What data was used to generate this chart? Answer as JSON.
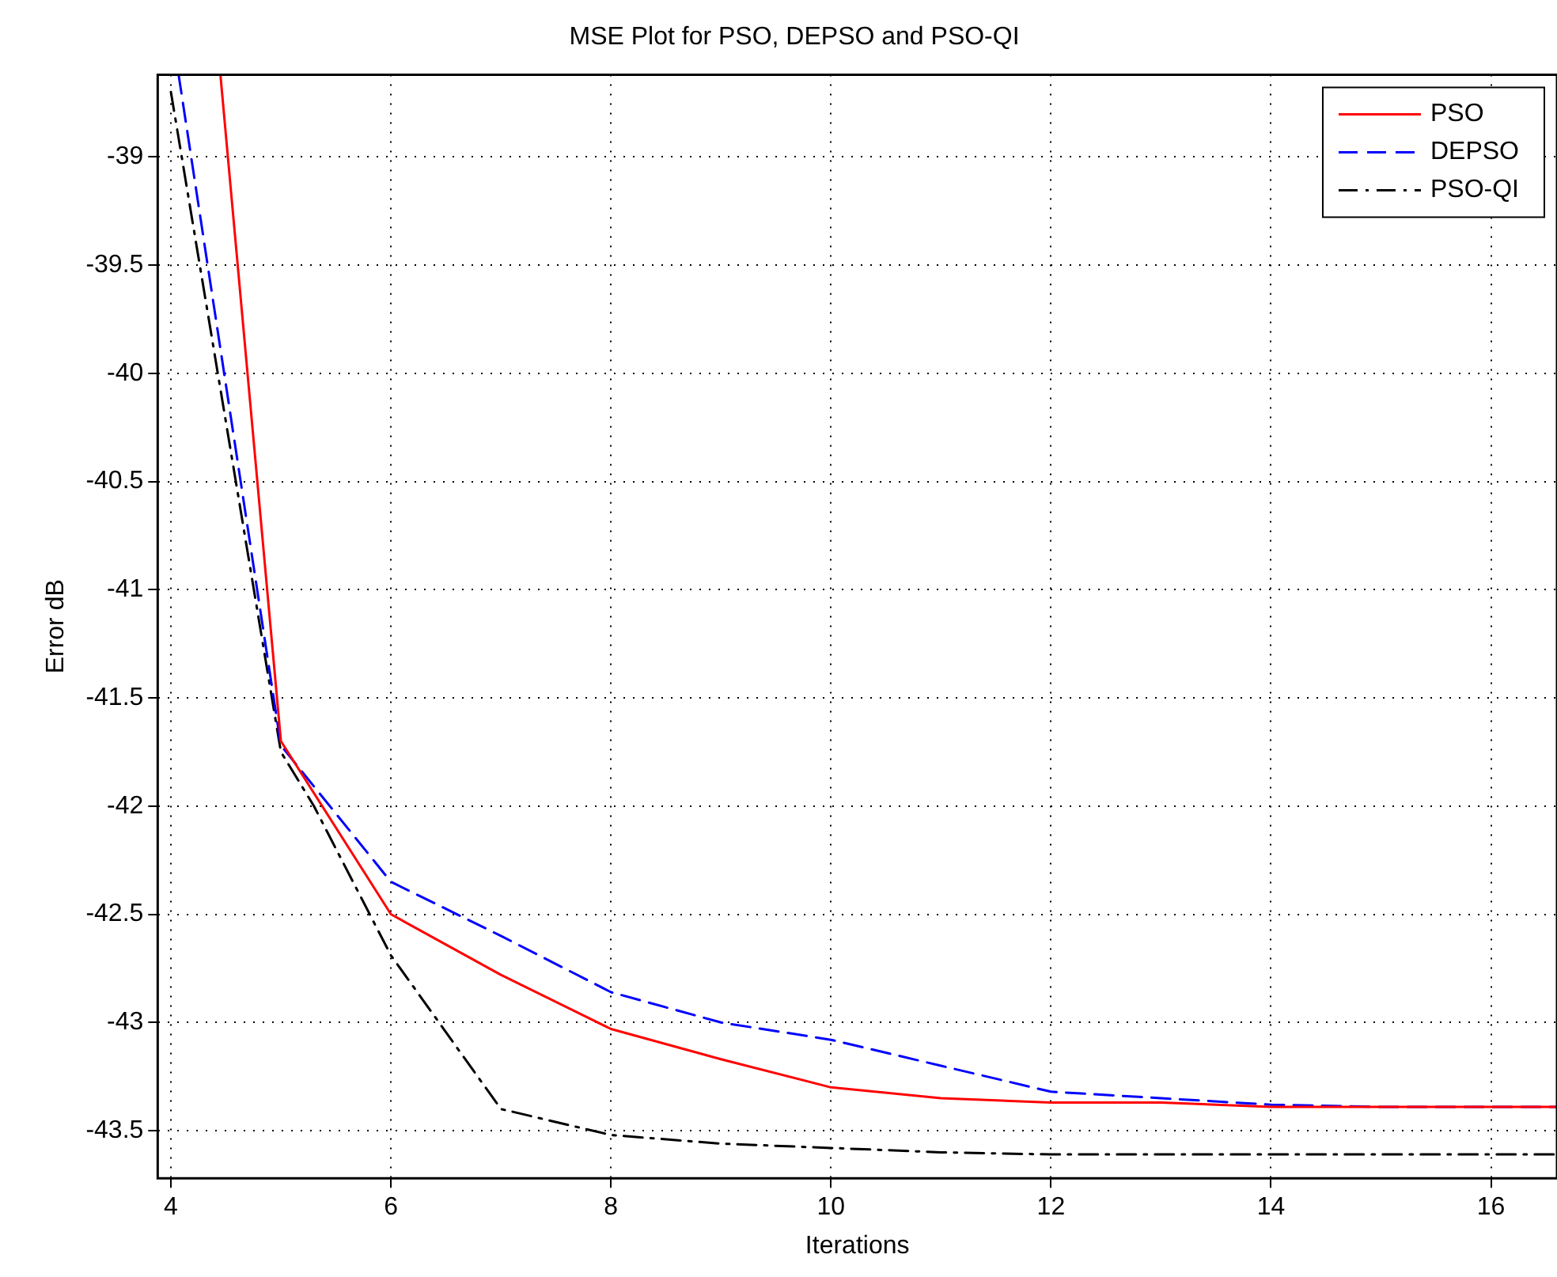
{
  "chart_data": {
    "type": "line",
    "title": "MSE Plot for PSO, DEPSO and PSO-QI",
    "xlabel": "Iterations",
    "ylabel": "Error dB",
    "xlim": [
      3.88,
      16.6
    ],
    "ylim": [
      -43.72,
      -38.62
    ],
    "xticks": [
      4,
      6,
      8,
      10,
      12,
      14,
      16
    ],
    "yticks": [
      -43.5,
      -43,
      -42.5,
      -42,
      -41.5,
      -41,
      -40.5,
      -40,
      -39.5,
      -39
    ],
    "grid": true,
    "legend": "top right",
    "marker": "none",
    "series": [
      {
        "name": "PSO",
        "color": "#ff0000",
        "line_style": "solid",
        "x": [
          4.45,
          5,
          6,
          7,
          8,
          9,
          10,
          11,
          12,
          13,
          14,
          15,
          16,
          16.6
        ],
        "values": [
          -38.62,
          -41.7,
          -42.5,
          -42.78,
          -43.03,
          -43.17,
          -43.3,
          -43.35,
          -43.37,
          -43.37,
          -43.39,
          -43.39,
          -43.39,
          -43.39
        ]
      },
      {
        "name": "DEPSO",
        "color": "#0000ff",
        "line_style": "dashed",
        "x": [
          4.07,
          5,
          6,
          7,
          8,
          9,
          10,
          11,
          12,
          13,
          14,
          15,
          16,
          16.6
        ],
        "values": [
          -38.62,
          -41.72,
          -42.35,
          -42.6,
          -42.86,
          -43.0,
          -43.08,
          -43.2,
          -43.32,
          -43.35,
          -43.38,
          -43.39,
          -43.39,
          -43.39
        ]
      },
      {
        "name": "PSO-QI",
        "color": "#000000",
        "line_style": "dashdot",
        "x": [
          4,
          5,
          5.3,
          6,
          7,
          8,
          9,
          10,
          11,
          12,
          13,
          14,
          15,
          16,
          16.6
        ],
        "values": [
          -38.7,
          -41.75,
          -42.0,
          -42.69,
          -43.4,
          -43.52,
          -43.56,
          -43.58,
          -43.6,
          -43.61,
          -43.61,
          -43.61,
          -43.61,
          -43.61,
          -43.61
        ]
      }
    ]
  }
}
